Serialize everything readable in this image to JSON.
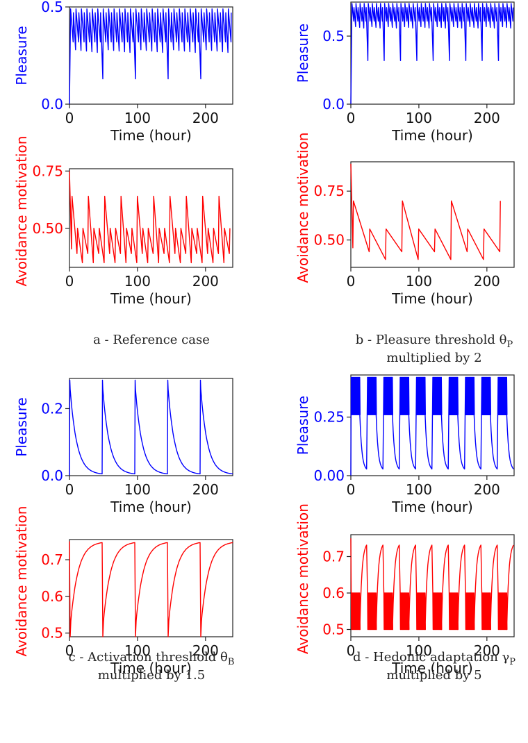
{
  "figure": {
    "panels": [
      {
        "id": "a",
        "caption_lines": [
          "a - Reference case"
        ]
      },
      {
        "id": "b",
        "caption_lines": [
          "b - Pleasure threshold θ",
          "multiplied by 2"
        ],
        "caption_sub": "P"
      },
      {
        "id": "c",
        "caption_lines": [
          "c - Activation threshold θ",
          "multiplied by 1.5"
        ],
        "caption_sub": "B"
      },
      {
        "id": "d",
        "caption_lines": [
          "d - Hedonic adaptation γ",
          "multiplied by 5"
        ],
        "caption_sub": "P"
      }
    ]
  },
  "colors": {
    "pleasure": "#0000ff",
    "avoidance": "#ff0000"
  },
  "chart_data": [
    {
      "panel": "a",
      "type": "line",
      "ylabel": "Pleasure",
      "xlabel": "Time (hour)",
      "xlim": [
        0,
        240
      ],
      "ylim": [
        0,
        0.5
      ],
      "xticks": [
        0,
        100,
        200
      ],
      "yticks": [
        0.0,
        0.5
      ],
      "ytick_labels": [
        "0.0",
        "0.5"
      ],
      "series": [
        {
          "pattern": "sawtooth",
          "start": 0.0,
          "period_hours": 8,
          "peak": 0.49,
          "trough": 0.26,
          "envelope_hours": 48,
          "envelope_low": 0.13
        }
      ]
    },
    {
      "panel": "a",
      "type": "line",
      "ylabel": "Avoidance motivation",
      "xlabel": "Time (hour)",
      "xlim": [
        0,
        240
      ],
      "ylim": [
        0.33,
        0.76
      ],
      "xticks": [
        0,
        100,
        200
      ],
      "yticks": [
        0.5,
        0.75
      ],
      "ytick_labels": [
        "0.50",
        "0.75"
      ],
      "series": [
        {
          "pattern": "sawtooth-decay",
          "start": 0.75,
          "period_hours": 8,
          "peak": 0.64,
          "trough": 0.33
        }
      ]
    },
    {
      "panel": "b",
      "type": "line",
      "ylabel": "Pleasure",
      "xlabel": "Time (hour)",
      "xlim": [
        0,
        240
      ],
      "ylim": [
        0,
        0.75
      ],
      "xticks": [
        0,
        100,
        200
      ],
      "yticks": [
        0.0,
        0.5
      ],
      "ytick_labels": [
        "0.0",
        "0.5"
      ],
      "series": [
        {
          "pattern": "sawtooth",
          "start": 0.0,
          "period_hours": 6,
          "peak": 0.74,
          "trough": 0.55,
          "envelope_hours": 24,
          "envelope_low": 0.32
        }
      ]
    },
    {
      "panel": "b",
      "type": "line",
      "ylabel": "Avoidance motivation",
      "xlabel": "Time (hour)",
      "xlim": [
        0,
        240
      ],
      "ylim": [
        0.36,
        0.9
      ],
      "xticks": [
        0,
        100,
        200
      ],
      "yticks": [
        0.5,
        0.75
      ],
      "ytick_labels": [
        "0.50",
        "0.75"
      ],
      "series": [
        {
          "pattern": "sawtooth-decay",
          "start": 0.89,
          "period_hours": 24,
          "peak": 0.7,
          "trough": 0.38
        }
      ]
    },
    {
      "panel": "c",
      "type": "line",
      "ylabel": "Pleasure",
      "xlabel": "Time (hour)",
      "xlim": [
        0,
        240
      ],
      "ylim": [
        0,
        0.29
      ],
      "xticks": [
        0,
        100,
        200
      ],
      "yticks": [
        0.0,
        0.2
      ],
      "ytick_labels": [
        "0.0",
        "0.2"
      ],
      "series": [
        {
          "pattern": "exp-decay",
          "start": 0.0,
          "period_hours": 48,
          "peak": 0.285,
          "trough": 0.003,
          "last_spike_hour": 192
        }
      ]
    },
    {
      "panel": "c",
      "type": "line",
      "ylabel": "Avoidance motivation",
      "xlabel": "Time (hour)",
      "xlim": [
        0,
        240
      ],
      "ylim": [
        0.49,
        0.755
      ],
      "xticks": [
        0,
        100,
        200
      ],
      "yticks": [
        0.5,
        0.6,
        0.7
      ],
      "ytick_labels": [
        "0.5",
        "0.6",
        "0.7"
      ],
      "series": [
        {
          "pattern": "exp-recover",
          "start": 0.75,
          "period_hours": 48,
          "peak": 0.75,
          "trough": 0.49,
          "last_spike_hour": 192
        }
      ]
    },
    {
      "panel": "d",
      "type": "line",
      "ylabel": "Pleasure",
      "xlabel": "Time (hour)",
      "xlim": [
        0,
        240
      ],
      "ylim": [
        0,
        0.43
      ],
      "xticks": [
        0,
        100,
        200
      ],
      "yticks": [
        0.0,
        0.25
      ],
      "ytick_labels": [
        "0.00",
        "0.25"
      ],
      "series": [
        {
          "pattern": "burst",
          "start": 0.0,
          "period_hours": 24,
          "high": 0.42,
          "band_low": 0.26,
          "trough": 0.02
        }
      ]
    },
    {
      "panel": "d",
      "type": "line",
      "ylabel": "Avoidance motivation",
      "xlabel": "Time (hour)",
      "xlim": [
        0,
        240
      ],
      "ylim": [
        0.48,
        0.76
      ],
      "xticks": [
        0,
        100,
        200
      ],
      "yticks": [
        0.5,
        0.6,
        0.7
      ],
      "ytick_labels": [
        "0.5",
        "0.6",
        "0.7"
      ],
      "series": [
        {
          "pattern": "burst-inverse",
          "start": 0.75,
          "period_hours": 24,
          "high": 0.74,
          "band_high": 0.6,
          "low": 0.5
        }
      ]
    }
  ]
}
